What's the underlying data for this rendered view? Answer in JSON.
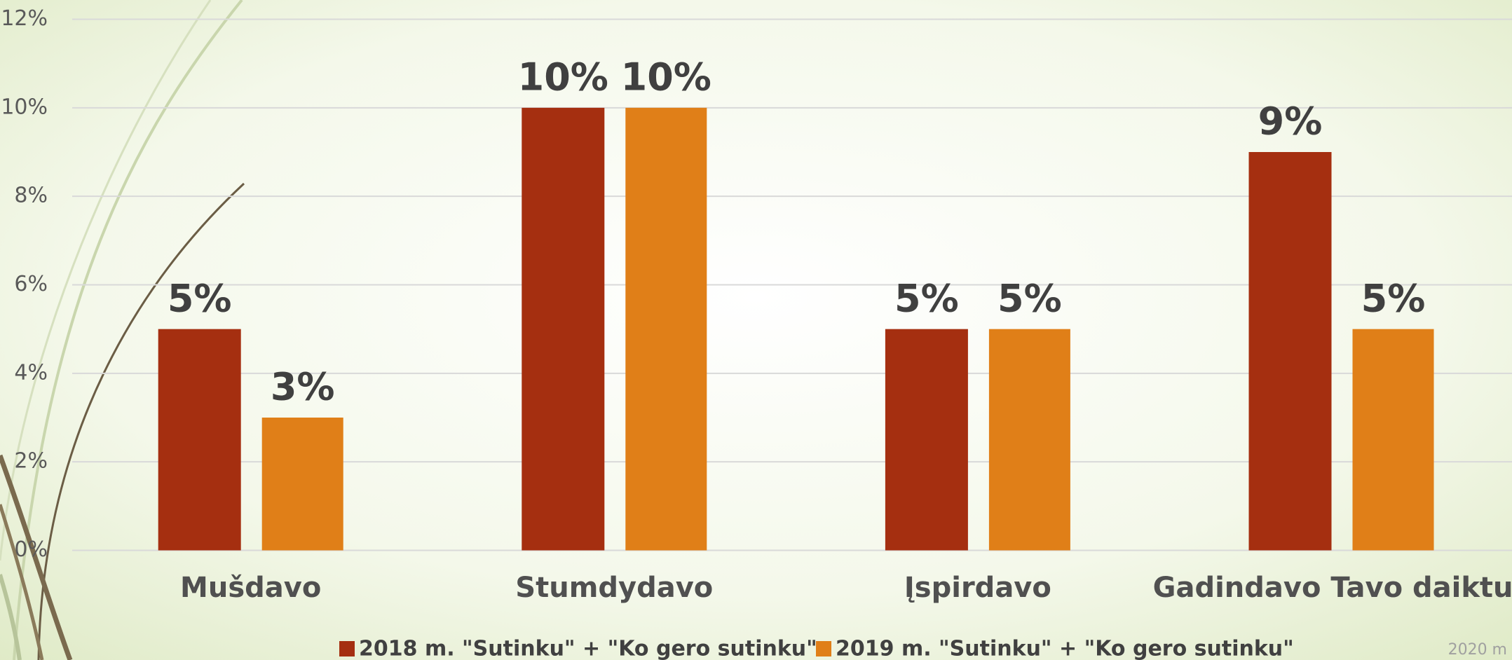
{
  "chart_data": {
    "type": "bar",
    "categories": [
      "Mušdavo",
      "Stumdydavo",
      "Įspirdavo",
      "Gadindavo Tavo daiktus"
    ],
    "series": [
      {
        "name": "2018 m. \"Sutinku\" + \"Ko gero sutinku\"",
        "color": "#a52f10",
        "values": [
          5,
          10,
          5,
          9
        ],
        "value_labels": [
          "5%",
          "10%",
          "5%",
          "9%"
        ]
      },
      {
        "name": "2019 m.  \"Sutinku\" + \"Ko gero sutinku\"",
        "color": "#e07f18",
        "values": [
          3,
          10,
          5,
          5
        ],
        "value_labels": [
          "3%",
          "10%",
          "5%",
          "5%"
        ]
      }
    ],
    "ylim": [
      0,
      12
    ],
    "yticks": [
      {
        "value": 0,
        "label": "0%"
      },
      {
        "value": 2,
        "label": "2%"
      },
      {
        "value": 4,
        "label": "4%"
      },
      {
        "value": 6,
        "label": "6%"
      },
      {
        "value": 8,
        "label": "8%"
      },
      {
        "value": 10,
        "label": "10%"
      },
      {
        "value": 12,
        "label": "12%"
      }
    ],
    "grid": true,
    "footer": "2020 m"
  }
}
